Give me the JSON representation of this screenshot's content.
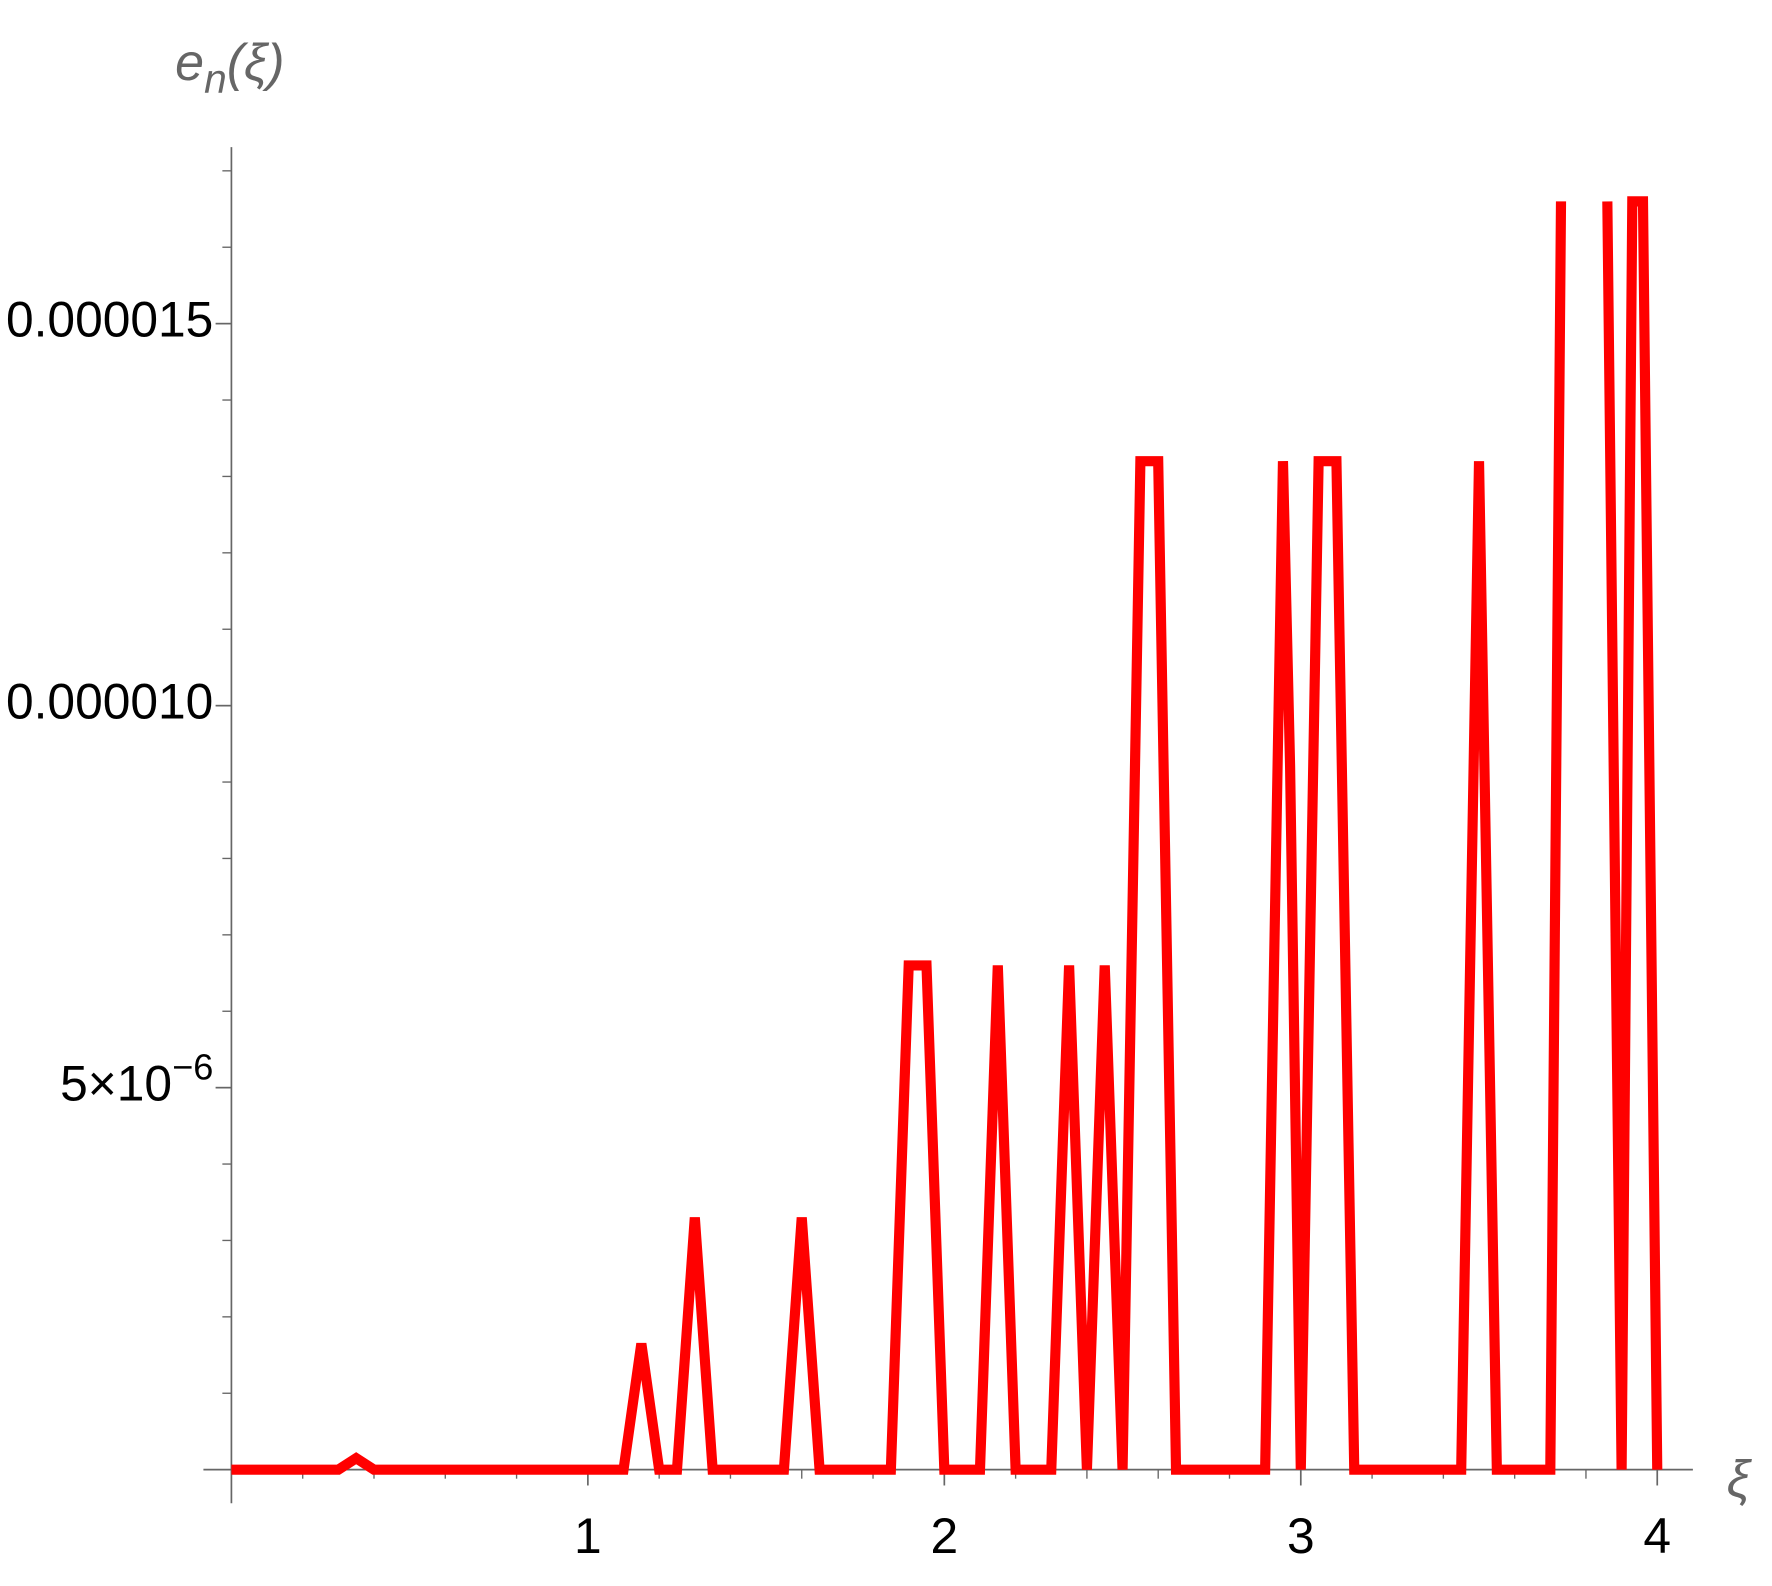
{
  "chart_data": {
    "type": "line",
    "y_label": {
      "base": "e",
      "sub": "n",
      "rest": "(ξ)"
    },
    "x_label": "ξ",
    "xlim": [
      -0.05,
      4.1
    ],
    "ylim": [
      -4.4e-07,
      1.66e-05
    ],
    "xticks": [
      1,
      2,
      3,
      4
    ],
    "xminorticks": [
      0.2,
      0.4,
      0.6,
      0.8,
      1.2,
      1.4,
      1.6,
      1.8,
      2.2,
      2.4,
      2.6,
      2.8,
      3.2,
      3.4,
      3.6,
      3.8
    ],
    "yticks": [
      {
        "value": 5e-06,
        "label": "5×10",
        "exponent": "−6"
      },
      {
        "value": 1e-05,
        "label": "0.000010"
      },
      {
        "value": 1.5e-05,
        "label": "0.000015"
      }
    ],
    "yminorticks": [
      1e-06,
      2e-06,
      3e-06,
      4e-06,
      6e-06,
      7e-06,
      8e-06,
      9e-06,
      1.1e-05,
      1.2e-05,
      1.3e-05,
      1.4e-05,
      1.6e-05,
      1.7e-05
    ],
    "series": [
      {
        "color": "#ff0000",
        "x": [
          0,
          0.3,
          0.35,
          0.4,
          1.1,
          1.15,
          1.2,
          1.25,
          1.3,
          1.35,
          1.55,
          1.6,
          1.65,
          1.85,
          1.9,
          1.95,
          2.0,
          2.1,
          2.15,
          2.2,
          2.3,
          2.35,
          2.4,
          2.45,
          2.5,
          2.55,
          2.6,
          2.65,
          2.9,
          2.95,
          2.97,
          3.0,
          3.05,
          3.1,
          3.15,
          3.45,
          3.5,
          3.55,
          3.7,
          3.73,
          3.73,
          3.86,
          3.86,
          3.9,
          3.93,
          3.96,
          4.0
        ],
        "values": [
          0,
          0,
          1.5e-07,
          0,
          0,
          1.65e-06,
          0,
          0,
          3.3e-06,
          0,
          0,
          3.3e-06,
          0,
          0,
          6.6e-06,
          6.6e-06,
          0,
          0,
          6.6e-06,
          0,
          0,
          6.6e-06,
          0,
          6.6e-06,
          0,
          1.32e-05,
          1.32e-05,
          0,
          0,
          1.32e-05,
          9.2e-06,
          0,
          1.32e-05,
          1.32e-05,
          0,
          0,
          1.32e-05,
          0,
          0,
          1.66e-05,
          null,
          1.66e-05,
          1.66e-05,
          0,
          1.66e-05,
          1.66e-05,
          0
        ]
      }
    ]
  }
}
